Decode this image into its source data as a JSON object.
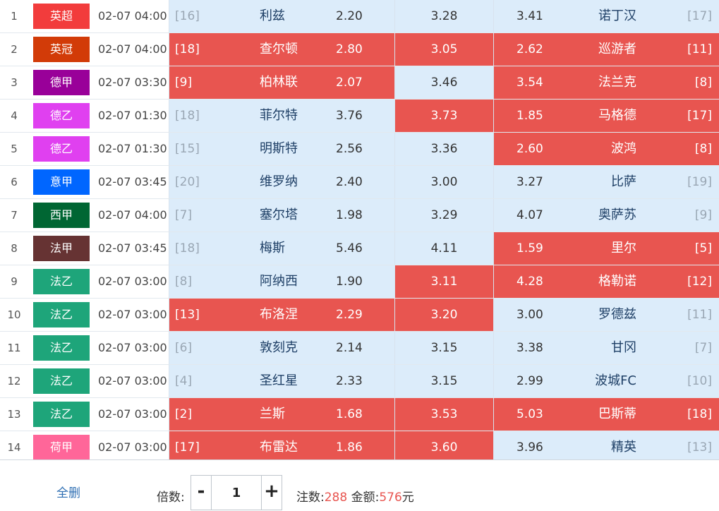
{
  "matches": [
    {
      "idx": "1",
      "league": "英超",
      "league_color": "#f23c3c",
      "time": "02-07 04:00",
      "home": {
        "rank": "[16]",
        "team": "利兹",
        "odd": "2.20",
        "selected": false
      },
      "draw": {
        "odd": "3.28",
        "selected": false
      },
      "away": {
        "odd": "3.41",
        "team": "诺丁汉",
        "rank": "[17]",
        "selected": false
      }
    },
    {
      "idx": "2",
      "league": "英冠",
      "league_color": "#d23b08",
      "time": "02-07 04:00",
      "home": {
        "rank": "[18]",
        "team": "查尔顿",
        "odd": "2.80",
        "selected": true
      },
      "draw": {
        "odd": "3.05",
        "selected": true
      },
      "away": {
        "odd": "2.62",
        "team": "巡游者",
        "rank": "[11]",
        "selected": true
      }
    },
    {
      "idx": "3",
      "league": "德甲",
      "league_color": "#990099",
      "time": "02-07 03:30",
      "home": {
        "rank": "[9]",
        "team": "柏林联",
        "odd": "2.07",
        "selected": true
      },
      "draw": {
        "odd": "3.46",
        "selected": false
      },
      "away": {
        "odd": "3.54",
        "team": "法兰克",
        "rank": "[8]",
        "selected": true
      }
    },
    {
      "idx": "4",
      "league": "德乙",
      "league_color": "#e040f0",
      "time": "02-07 01:30",
      "home": {
        "rank": "[18]",
        "team": "菲尔特",
        "odd": "3.76",
        "selected": false
      },
      "draw": {
        "odd": "3.73",
        "selected": true
      },
      "away": {
        "odd": "1.85",
        "team": "马格德",
        "rank": "[17]",
        "selected": true
      }
    },
    {
      "idx": "5",
      "league": "德乙",
      "league_color": "#e040f0",
      "time": "02-07 01:30",
      "home": {
        "rank": "[15]",
        "team": "明斯特",
        "odd": "2.56",
        "selected": false
      },
      "draw": {
        "odd": "3.36",
        "selected": false
      },
      "away": {
        "odd": "2.60",
        "team": "波鸿",
        "rank": "[8]",
        "selected": true
      }
    },
    {
      "idx": "6",
      "league": "意甲",
      "league_color": "#0066ff",
      "time": "02-07 03:45",
      "home": {
        "rank": "[20]",
        "team": "维罗纳",
        "odd": "2.40",
        "selected": false
      },
      "draw": {
        "odd": "3.00",
        "selected": false
      },
      "away": {
        "odd": "3.27",
        "team": "比萨",
        "rank": "[19]",
        "selected": false
      }
    },
    {
      "idx": "7",
      "league": "西甲",
      "league_color": "#006633",
      "time": "02-07 04:00",
      "home": {
        "rank": "[7]",
        "team": "塞尔塔",
        "odd": "1.98",
        "selected": false
      },
      "draw": {
        "odd": "3.29",
        "selected": false
      },
      "away": {
        "odd": "4.07",
        "team": "奥萨苏",
        "rank": "[9]",
        "selected": false
      }
    },
    {
      "idx": "8",
      "league": "法甲",
      "league_color": "#663333",
      "time": "02-07 03:45",
      "home": {
        "rank": "[18]",
        "team": "梅斯",
        "odd": "5.46",
        "selected": false
      },
      "draw": {
        "odd": "4.11",
        "selected": false
      },
      "away": {
        "odd": "1.59",
        "team": "里尔",
        "rank": "[5]",
        "selected": true
      }
    },
    {
      "idx": "9",
      "league": "法乙",
      "league_color": "#1ea57a",
      "time": "02-07 03:00",
      "home": {
        "rank": "[8]",
        "team": "阿纳西",
        "odd": "1.90",
        "selected": false
      },
      "draw": {
        "odd": "3.11",
        "selected": true
      },
      "away": {
        "odd": "4.28",
        "team": "格勒诺",
        "rank": "[12]",
        "selected": true
      }
    },
    {
      "idx": "10",
      "league": "法乙",
      "league_color": "#1ea57a",
      "time": "02-07 03:00",
      "home": {
        "rank": "[13]",
        "team": "布洛涅",
        "odd": "2.29",
        "selected": true
      },
      "draw": {
        "odd": "3.20",
        "selected": true
      },
      "away": {
        "odd": "3.00",
        "team": "罗德兹",
        "rank": "[11]",
        "selected": false
      }
    },
    {
      "idx": "11",
      "league": "法乙",
      "league_color": "#1ea57a",
      "time": "02-07 03:00",
      "home": {
        "rank": "[6]",
        "team": "敦刻克",
        "odd": "2.14",
        "selected": false
      },
      "draw": {
        "odd": "3.15",
        "selected": false
      },
      "away": {
        "odd": "3.38",
        "team": "甘冈",
        "rank": "[7]",
        "selected": false
      }
    },
    {
      "idx": "12",
      "league": "法乙",
      "league_color": "#1ea57a",
      "time": "02-07 03:00",
      "home": {
        "rank": "[4]",
        "team": "圣红星",
        "odd": "2.33",
        "selected": false
      },
      "draw": {
        "odd": "3.15",
        "selected": false
      },
      "away": {
        "odd": "2.99",
        "team": "波城FC",
        "rank": "[10]",
        "selected": false
      }
    },
    {
      "idx": "13",
      "league": "法乙",
      "league_color": "#1ea57a",
      "time": "02-07 03:00",
      "home": {
        "rank": "[2]",
        "team": "兰斯",
        "odd": "1.68",
        "selected": true
      },
      "draw": {
        "odd": "3.53",
        "selected": true
      },
      "away": {
        "odd": "5.03",
        "team": "巴斯蒂",
        "rank": "[18]",
        "selected": true
      }
    },
    {
      "idx": "14",
      "league": "荷甲",
      "league_color": "#ff6699",
      "time": "02-07 03:00",
      "home": {
        "rank": "[17]",
        "team": "布雷达",
        "odd": "1.86",
        "selected": true
      },
      "draw": {
        "odd": "3.60",
        "selected": true
      },
      "away": {
        "odd": "3.96",
        "team": "精英",
        "rank": "[13]",
        "selected": false
      }
    }
  ],
  "footer": {
    "delete_all_label": "全删",
    "multiplier_label": "倍数:",
    "minus_label": "-",
    "multiplier_value": "1",
    "plus_label": "+",
    "bets_label": "注数:",
    "bets_value": "288",
    "amount_label": "金额:",
    "amount_value": "576",
    "currency": "元"
  },
  "colors": {
    "selected": "#e85550",
    "unselected": "#dcecfa",
    "link": "#2f6fb3"
  }
}
